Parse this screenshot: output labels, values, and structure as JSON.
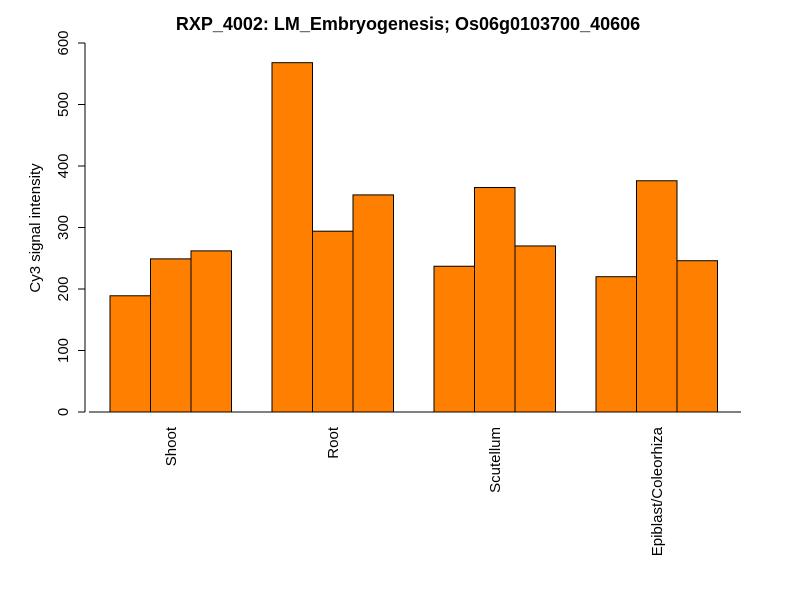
{
  "chart_data": {
    "type": "bar",
    "title": "RXP_4002: LM_Embryogenesis; Os06g0103700_40606",
    "xlabel": "",
    "ylabel": "Cy3 signal intensity",
    "ylim": [
      0,
      600
    ],
    "yticks": [
      0,
      100,
      200,
      300,
      400,
      500,
      600
    ],
    "categories": [
      "Shoot",
      "Root",
      "Scutellum",
      "Epiblast/Coleorhiza"
    ],
    "series": [
      {
        "values": [
          189,
          568,
          237,
          220
        ]
      },
      {
        "values": [
          249,
          294,
          365,
          376
        ]
      },
      {
        "values": [
          262,
          353,
          270,
          246
        ]
      }
    ],
    "bar_color": "#FF7F00",
    "grid": false,
    "legend": "none"
  }
}
